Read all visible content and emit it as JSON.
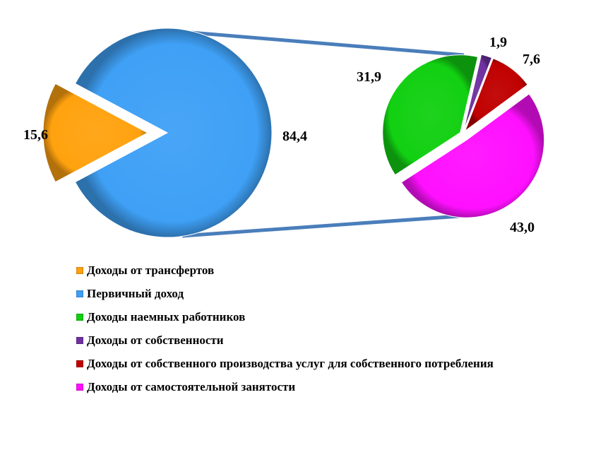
{
  "chart_data": {
    "type": "pie-of-pie",
    "main_pie": {
      "slices": [
        {
          "name": "Доходы от трансфертов",
          "value": 15.6,
          "label": "15,6",
          "color": "#ffa20f"
        },
        {
          "name": "Первичный доход",
          "value": 84.4,
          "label": "84,4",
          "color": "#3fa0f5"
        }
      ]
    },
    "secondary_pie": {
      "expands": "Первичный доход",
      "slices": [
        {
          "name": "Доходы наемных работников",
          "value": 31.9,
          "label": "31,9",
          "color": "#12d012"
        },
        {
          "name": "Доходы от собственности",
          "value": 1.9,
          "label": "1,9",
          "color": "#7030a0"
        },
        {
          "name": "Доходы от собственного производства услуг для собственного потребления",
          "value": 7.6,
          "label": "7,6",
          "color": "#c00000"
        },
        {
          "name": "Доходы от самостоятельной занятости",
          "value": 43.0,
          "label": "43,0",
          "color": "#ff10ff"
        }
      ]
    },
    "connector_color": "#4a7ebb",
    "legend": {
      "placement": "bottom",
      "items": [
        {
          "label": "Доходы от трансфертов",
          "color": "#ffa20f"
        },
        {
          "label": "Первичный доход",
          "color": "#3fa0f5"
        },
        {
          "label": "Доходы наемных работников",
          "color": "#12d012"
        },
        {
          "label": "Доходы от собственности",
          "color": "#7030a0"
        },
        {
          "label": "Доходы от собственного производства услуг для собственного потребления",
          "color": "#c00000"
        },
        {
          "label": "Доходы от самостоятельной занятости",
          "color": "#ff10ff"
        }
      ]
    }
  }
}
